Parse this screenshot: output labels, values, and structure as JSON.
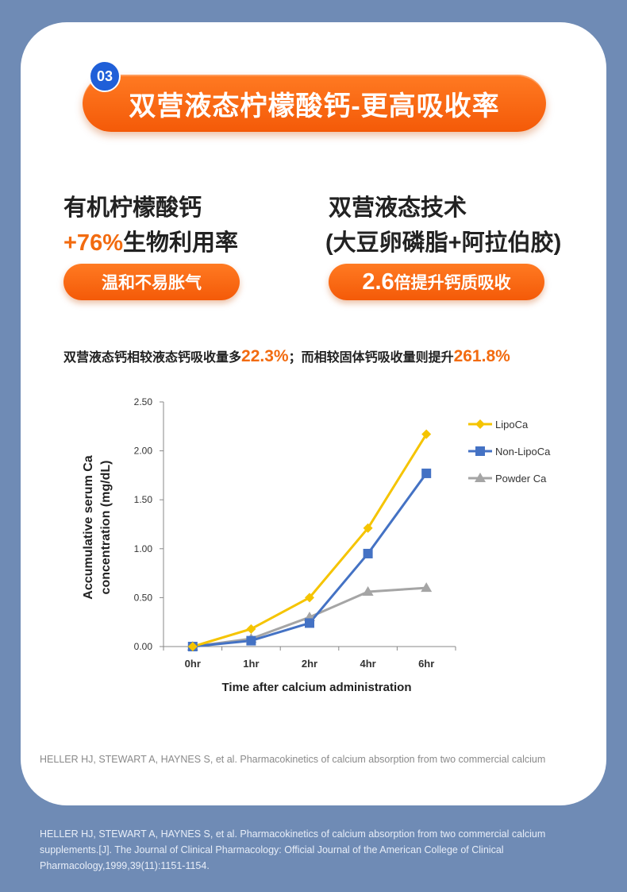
{
  "header": {
    "badge": "03",
    "title": "双营液态柠檬酸钙-更高吸收率"
  },
  "features": {
    "left": {
      "line1": "有机柠檬酸钙",
      "highlight": "+76%",
      "line2_rest": "生物利用率",
      "pill": "温和不易胀气"
    },
    "right": {
      "line1": "双营液态技术",
      "line2": "(大豆卵磷脂+阿拉伯胶)",
      "pill_number": "2.6",
      "pill_rest": "倍提升钙质吸收"
    }
  },
  "summary": {
    "part1": "双营液态钙相较液态钙吸收量多",
    "value1": "22.3%",
    "part2": "；而相较固体钙吸收量则提升",
    "value2": "261.8%"
  },
  "chart_data": {
    "type": "line",
    "title": "",
    "xlabel": "Time after calcium administration",
    "ylabel_line1": "Accumulative serum Ca",
    "ylabel_line2": "concentration (mg/dL)",
    "categories": [
      "0hr",
      "1hr",
      "2hr",
      "4hr",
      "6hr"
    ],
    "ylim": [
      0,
      2.5
    ],
    "yticks": [
      "0.00",
      "0.50",
      "1.00",
      "1.50",
      "2.00",
      "2.50"
    ],
    "ytick_values": [
      0,
      0.5,
      1.0,
      1.5,
      2.0,
      2.5
    ],
    "grid": false,
    "legend": "right",
    "series": [
      {
        "name": "LipoCa",
        "color": "#f5c400",
        "marker": "diamond",
        "values": [
          0.0,
          0.18,
          0.5,
          1.21,
          2.17
        ]
      },
      {
        "name": "Non-LipoCa",
        "color": "#4472c4",
        "marker": "square",
        "values": [
          0.0,
          0.06,
          0.24,
          0.95,
          1.77
        ]
      },
      {
        "name": "Powder Ca",
        "color": "#a5a5a5",
        "marker": "triangle",
        "values": [
          0.0,
          0.08,
          0.3,
          0.56,
          0.6
        ]
      }
    ]
  },
  "references": {
    "inside": "HELLER HJ, STEWART A, HAYNES S, et al. Pharmacokinetics of calcium absorption from two commercial calcium",
    "outside": "HELLER HJ, STEWART A, HAYNES S, et al. Pharmacokinetics of calcium absorption from two commercial calcium supplements.[J]. The Journal of Clinical Pharmacology: Official Journal of the American College of Clinical Pharmacology,1999,39(11):1151-1154."
  }
}
